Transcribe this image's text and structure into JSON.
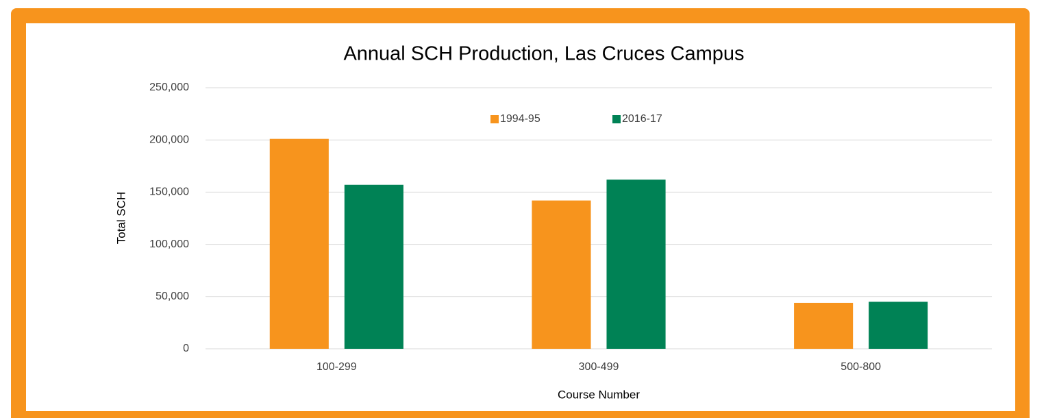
{
  "chart_data": {
    "type": "bar",
    "title": "Annual SCH Production, Las Cruces Campus",
    "categories": [
      "100-299",
      "300-499",
      "500-800"
    ],
    "series": [
      {
        "name": "1994-95",
        "color": "#f7941d",
        "values": [
          201000,
          142000,
          44000
        ]
      },
      {
        "name": "2016-17",
        "color": "#008255",
        "values": [
          157000,
          162000,
          45000
        ]
      }
    ],
    "ylim": [
      0,
      250000
    ],
    "yticks": [
      0,
      {
        "value": 50000,
        "label": "50,000"
      },
      {
        "value": 100000,
        "label": "100,000"
      },
      {
        "value": 150000,
        "label": "150,000"
      },
      {
        "value": 200000,
        "label": "200,000"
      },
      {
        "value": 250000,
        "label": "250,000"
      }
    ],
    "y_label": "Total SCH",
    "x_label": "Course Number",
    "grid": true,
    "legend": "top"
  }
}
